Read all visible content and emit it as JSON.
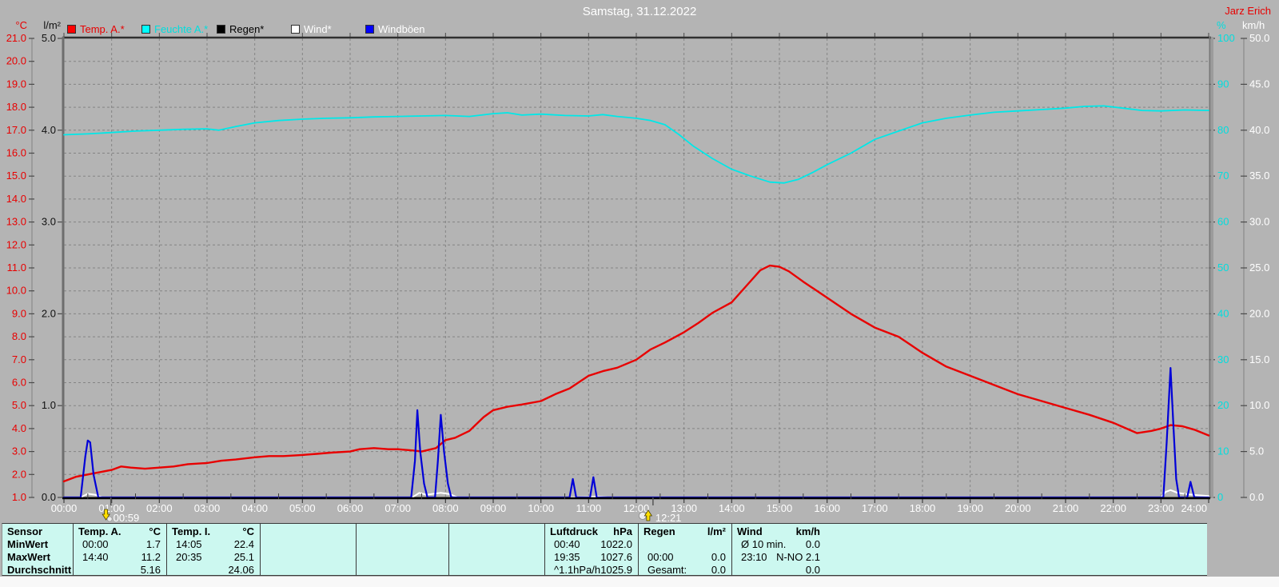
{
  "header": {
    "title": "Samstag, 31.12.2022",
    "author": "Jarz Erich"
  },
  "legend": {
    "items": [
      {
        "label": "Temp. A.*",
        "color": "#ff0000",
        "label_color": "#e80000"
      },
      {
        "label": "Feuchte A.*",
        "color": "#00ffff",
        "label_color": "#00dede"
      },
      {
        "label": "Regen*",
        "color": "#000000",
        "label_color": "#000000"
      },
      {
        "label": "Wind*",
        "color": "#ffffff",
        "label_color": "#ffffff"
      },
      {
        "label": "Windböen",
        "color": "#0000ff",
        "label_color": "#ffffff"
      }
    ]
  },
  "chart_data": {
    "type": "line",
    "title": "Samstag, 31.12.2022",
    "x_axis": {
      "min_hour": 0,
      "max_hour": 24,
      "tick_labels": [
        "00:00",
        "01:00",
        "02:00",
        "03:00",
        "04:00",
        "05:00",
        "06:00",
        "07:00",
        "08:00",
        "09:00",
        "10:00",
        "11:00",
        "12:00",
        "13:00",
        "14:00",
        "15:00",
        "16:00",
        "17:00",
        "18:00",
        "19:00",
        "20:00",
        "21:00",
        "22:00",
        "23:00",
        "24:00"
      ]
    },
    "axes": {
      "temp": {
        "unit": "°C",
        "min": 1.0,
        "max": 21.0,
        "tick_step": 1.0,
        "tick_labels": [
          "1.0",
          "2.0",
          "3.0",
          "4.0",
          "5.0",
          "6.0",
          "7.0",
          "8.0",
          "9.0",
          "10.0",
          "11.0",
          "12.0",
          "13.0",
          "14.0",
          "15.0",
          "16.0",
          "17.0",
          "18.0",
          "19.0",
          "20.0",
          "21.0"
        ]
      },
      "rain": {
        "unit": "l/m²",
        "min": 0.0,
        "max": 5.0,
        "tick_step": 1.0,
        "tick_labels": [
          "0.0",
          "1.0",
          "2.0",
          "3.0",
          "4.0",
          "5.0"
        ]
      },
      "humidity": {
        "unit": "%",
        "min": 0,
        "max": 100,
        "tick_step": 10,
        "tick_labels": [
          "0",
          "10",
          "20",
          "30",
          "40",
          "50",
          "60",
          "70",
          "80",
          "90",
          "100"
        ]
      },
      "wind": {
        "unit": "km/h",
        "min": 0,
        "max": 50,
        "tick_step": 5,
        "tick_labels": [
          "0.0",
          "5.0",
          "10.0",
          "15.0",
          "20.0",
          "25.0",
          "30.0",
          "35.0",
          "40.0",
          "45.0",
          "50.0"
        ]
      }
    },
    "grid": {
      "horizontal_divisions": 20,
      "vertical_divisions": 24,
      "style": "dashed"
    },
    "legend_position": "top",
    "series": [
      {
        "name": "Feuchte A.*",
        "axis": "humidity",
        "color": "#00e8e8",
        "width": 1.8,
        "points": [
          [
            0,
            79
          ],
          [
            0.5,
            79.2
          ],
          [
            1,
            79.5
          ],
          [
            1.5,
            79.8
          ],
          [
            2,
            80
          ],
          [
            2.5,
            80.2
          ],
          [
            3,
            80.3
          ],
          [
            3.25,
            80.0
          ],
          [
            3.6,
            80.8
          ],
          [
            4,
            81.6
          ],
          [
            4.5,
            82.1
          ],
          [
            5,
            82.4
          ],
          [
            5.5,
            82.6
          ],
          [
            6,
            82.7
          ],
          [
            6.5,
            82.9
          ],
          [
            7,
            83.0
          ],
          [
            7.5,
            83.1
          ],
          [
            8,
            83.2
          ],
          [
            8.5,
            83.0
          ],
          [
            9,
            83.6
          ],
          [
            9.3,
            83.8
          ],
          [
            9.6,
            83.3
          ],
          [
            10,
            83.5
          ],
          [
            10.5,
            83.2
          ],
          [
            11,
            83.1
          ],
          [
            11.3,
            83.4
          ],
          [
            11.6,
            83.0
          ],
          [
            12,
            82.6
          ],
          [
            12.3,
            82.1
          ],
          [
            12.6,
            81.2
          ],
          [
            12.9,
            79.0
          ],
          [
            13.2,
            76.5
          ],
          [
            13.6,
            73.8
          ],
          [
            14,
            71.5
          ],
          [
            14.4,
            70.0
          ],
          [
            14.8,
            68.7
          ],
          [
            15.1,
            68.5
          ],
          [
            15.4,
            69.3
          ],
          [
            15.7,
            70.8
          ],
          [
            16,
            72.5
          ],
          [
            16.5,
            75.0
          ],
          [
            17,
            78.0
          ],
          [
            17.5,
            79.8
          ],
          [
            18,
            81.6
          ],
          [
            18.5,
            82.6
          ],
          [
            19,
            83.3
          ],
          [
            19.5,
            83.9
          ],
          [
            20,
            84.2
          ],
          [
            20.5,
            84.5
          ],
          [
            21,
            84.8
          ],
          [
            21.4,
            85.2
          ],
          [
            21.8,
            85.3
          ],
          [
            22.2,
            84.8
          ],
          [
            22.6,
            84.3
          ],
          [
            23,
            84.2
          ],
          [
            23.5,
            84.4
          ],
          [
            24,
            84.3
          ]
        ]
      },
      {
        "name": "Regen*",
        "axis": "rain",
        "color": "#000000",
        "width": 1,
        "points": [
          [
            0,
            0
          ],
          [
            24,
            0
          ]
        ]
      },
      {
        "name": "Temp. A.*",
        "axis": "temp",
        "color": "#e80000",
        "width": 2.4,
        "points": [
          [
            0,
            1.7
          ],
          [
            0.25,
            1.9
          ],
          [
            0.5,
            2.0
          ],
          [
            0.75,
            2.1
          ],
          [
            1,
            2.2
          ],
          [
            1.2,
            2.35
          ],
          [
            1.4,
            2.3
          ],
          [
            1.7,
            2.25
          ],
          [
            2,
            2.3
          ],
          [
            2.3,
            2.35
          ],
          [
            2.6,
            2.45
          ],
          [
            3,
            2.5
          ],
          [
            3.3,
            2.6
          ],
          [
            3.6,
            2.65
          ],
          [
            4,
            2.75
          ],
          [
            4.3,
            2.8
          ],
          [
            4.6,
            2.8
          ],
          [
            5,
            2.85
          ],
          [
            5.3,
            2.9
          ],
          [
            5.6,
            2.95
          ],
          [
            6,
            3.0
          ],
          [
            6.2,
            3.1
          ],
          [
            6.5,
            3.15
          ],
          [
            6.8,
            3.1
          ],
          [
            7,
            3.1
          ],
          [
            7.3,
            3.05
          ],
          [
            7.5,
            3.0
          ],
          [
            7.8,
            3.15
          ],
          [
            8,
            3.5
          ],
          [
            8.2,
            3.6
          ],
          [
            8.5,
            3.9
          ],
          [
            8.8,
            4.5
          ],
          [
            9,
            4.8
          ],
          [
            9.3,
            4.95
          ],
          [
            9.6,
            5.05
          ],
          [
            10,
            5.2
          ],
          [
            10.3,
            5.5
          ],
          [
            10.6,
            5.75
          ],
          [
            11,
            6.3
          ],
          [
            11.3,
            6.5
          ],
          [
            11.6,
            6.65
          ],
          [
            12,
            7.0
          ],
          [
            12.3,
            7.45
          ],
          [
            12.6,
            7.75
          ],
          [
            13,
            8.2
          ],
          [
            13.3,
            8.6
          ],
          [
            13.6,
            9.05
          ],
          [
            14,
            9.5
          ],
          [
            14.3,
            10.2
          ],
          [
            14.6,
            10.9
          ],
          [
            14.8,
            11.1
          ],
          [
            15,
            11.05
          ],
          [
            15.2,
            10.85
          ],
          [
            15.5,
            10.4
          ],
          [
            16,
            9.7
          ],
          [
            16.5,
            9.0
          ],
          [
            17,
            8.4
          ],
          [
            17.5,
            8.0
          ],
          [
            18,
            7.3
          ],
          [
            18.5,
            6.7
          ],
          [
            19,
            6.3
          ],
          [
            19.5,
            5.9
          ],
          [
            20,
            5.5
          ],
          [
            20.5,
            5.2
          ],
          [
            21,
            4.9
          ],
          [
            21.5,
            4.6
          ],
          [
            22,
            4.25
          ],
          [
            22.5,
            3.8
          ],
          [
            22.8,
            3.9
          ],
          [
            23,
            4.0
          ],
          [
            23.2,
            4.15
          ],
          [
            23.45,
            4.1
          ],
          [
            23.7,
            3.95
          ],
          [
            24,
            3.7
          ]
        ]
      },
      {
        "name": "Wind*",
        "axis": "wind",
        "color": "#ffffff",
        "width": 2,
        "points": [
          [
            0,
            0
          ],
          [
            0.35,
            0
          ],
          [
            0.5,
            0.4
          ],
          [
            0.65,
            0.3
          ],
          [
            0.8,
            0
          ],
          [
            7.3,
            0
          ],
          [
            7.45,
            0.5
          ],
          [
            7.6,
            0.3
          ],
          [
            7.9,
            0.5
          ],
          [
            8.1,
            0.35
          ],
          [
            8.25,
            0
          ],
          [
            10.6,
            0
          ],
          [
            11.2,
            0.1
          ],
          [
            11.4,
            0
          ],
          [
            23.0,
            0
          ],
          [
            23.1,
            0.6
          ],
          [
            23.2,
            0.8
          ],
          [
            23.35,
            0.5
          ],
          [
            23.55,
            0.35
          ],
          [
            23.75,
            0.25
          ],
          [
            24,
            0.15
          ]
        ]
      },
      {
        "name": "Windböen",
        "axis": "wind",
        "color": "#0000d8",
        "width": 2.2,
        "points": [
          [
            0,
            0
          ],
          [
            0.35,
            0
          ],
          [
            0.45,
            4.5
          ],
          [
            0.5,
            6.2
          ],
          [
            0.55,
            6.0
          ],
          [
            0.62,
            2.5
          ],
          [
            0.72,
            0
          ],
          [
            7.28,
            0
          ],
          [
            7.36,
            4
          ],
          [
            7.41,
            9.5
          ],
          [
            7.47,
            5
          ],
          [
            7.55,
            1.5
          ],
          [
            7.62,
            0
          ],
          [
            7.78,
            0
          ],
          [
            7.84,
            4
          ],
          [
            7.9,
            9.0
          ],
          [
            7.97,
            5
          ],
          [
            8.05,
            1.5
          ],
          [
            8.12,
            0
          ],
          [
            10.6,
            0
          ],
          [
            10.67,
            2.0
          ],
          [
            10.74,
            0
          ],
          [
            11.03,
            0
          ],
          [
            11.1,
            2.2
          ],
          [
            11.17,
            0
          ],
          [
            23.05,
            0
          ],
          [
            23.12,
            6
          ],
          [
            23.2,
            14.1
          ],
          [
            23.26,
            8
          ],
          [
            23.32,
            2
          ],
          [
            23.38,
            0
          ],
          [
            23.55,
            0
          ],
          [
            23.62,
            1.7
          ],
          [
            23.7,
            0
          ],
          [
            24,
            0
          ]
        ]
      }
    ],
    "markers": [
      {
        "time": "00:59",
        "hour": 0.983,
        "icon": "moonset-arrow-down"
      },
      {
        "time": "12:21",
        "hour": 12.35,
        "icon": "moonrise-arrow-up"
      }
    ]
  },
  "info_table": {
    "row_labels": [
      "Sensor",
      "MinWert",
      "MaxWert",
      "Durchschnitt"
    ],
    "columns": [
      {
        "name": "Temp. A.",
        "unit": "°C",
        "rows": [
          [
            "00:00",
            "1.7"
          ],
          [
            "14:40",
            "11.2"
          ],
          [
            "",
            "5.16"
          ]
        ]
      },
      {
        "name": "Temp. I.",
        "unit": "°C",
        "rows": [
          [
            "14:05",
            "22.4"
          ],
          [
            "20:35",
            "25.1"
          ],
          [
            "",
            "24.06"
          ]
        ]
      },
      {
        "name": "",
        "unit": "",
        "rows": [
          [
            "",
            ""
          ],
          [
            "",
            ""
          ],
          [
            "",
            ""
          ]
        ]
      },
      {
        "name": "",
        "unit": "",
        "rows": [
          [
            "",
            ""
          ],
          [
            "",
            ""
          ],
          [
            "",
            ""
          ]
        ]
      },
      {
        "name": "",
        "unit": "",
        "rows": [
          [
            "",
            ""
          ],
          [
            "",
            ""
          ],
          [
            "",
            ""
          ]
        ]
      },
      {
        "name": "Luftdruck",
        "unit": "hPa",
        "rows": [
          [
            "00:40",
            "1022.0"
          ],
          [
            "19:35",
            "1027.6"
          ],
          [
            "^1.1hPa/h",
            "1025.9"
          ]
        ]
      },
      {
        "name": "Regen",
        "unit": "l/m²",
        "rows": [
          [
            "",
            ""
          ],
          [
            "00:00",
            "0.0"
          ],
          [
            "Gesamt:",
            "0.0"
          ]
        ]
      },
      {
        "name": "Wind",
        "unit": "km/h",
        "rows": [
          [
            "Ø 10 min.",
            "0.0"
          ],
          [
            "23:10",
            "N-NO 2.1"
          ],
          [
            "",
            "0.0"
          ]
        ]
      }
    ]
  },
  "colors": {
    "background": "#b4b4b4",
    "grid": "#848484",
    "axis_dark": "#303030",
    "tick": "#4a4a4a",
    "border_left": "#6e6e6e",
    "border_right_outer": "#777777",
    "border_right_inner": "#9b9b9b",
    "temp_labels": "#e80000",
    "rain_labels": "#101010",
    "humidity_labels": "#00dede",
    "wind_labels": "#ffffff",
    "hour_labels": "#ffffff",
    "table_bg": "#ccf8f0",
    "marker_yellow": "#ffdf00"
  }
}
